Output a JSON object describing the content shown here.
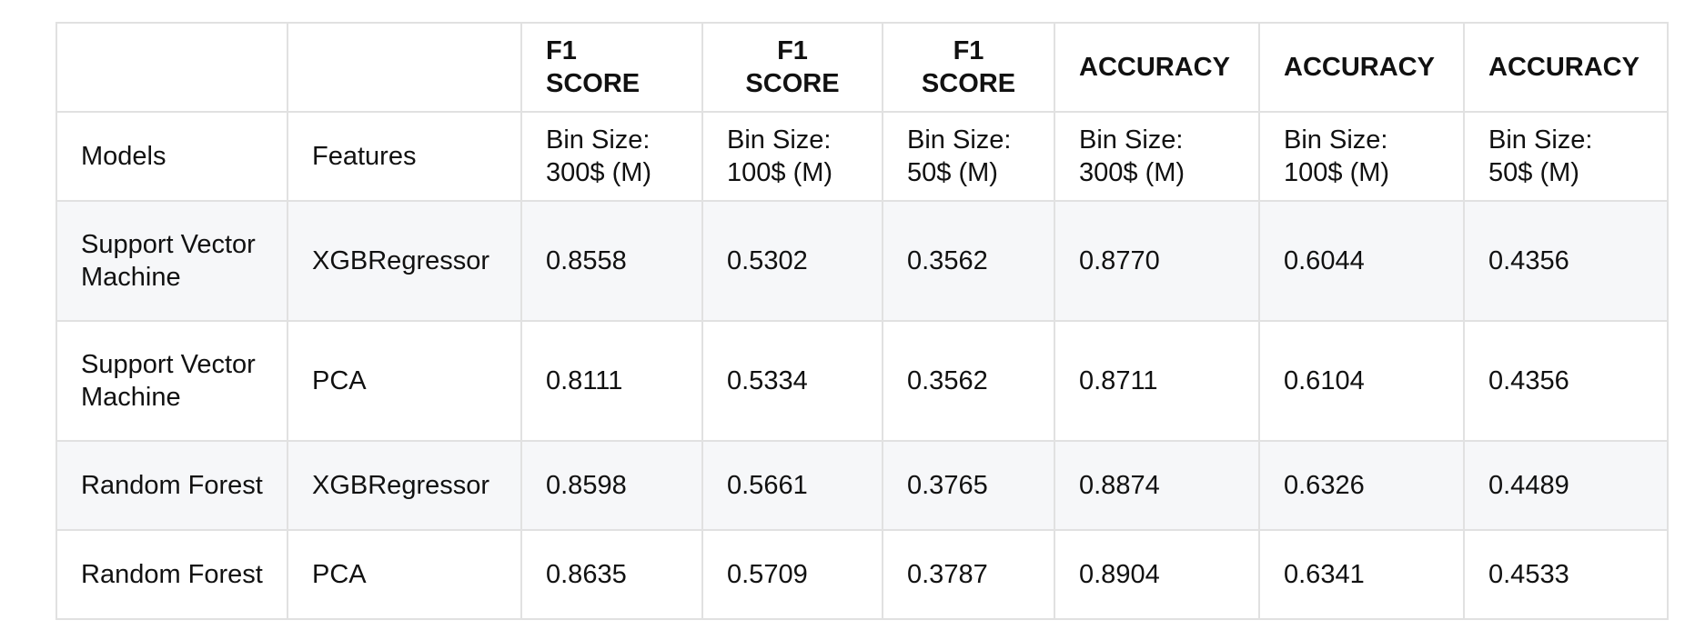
{
  "table": {
    "header": [
      "",
      "",
      "F1 SCORE",
      "F1 SCORE",
      "F1 SCORE",
      "ACCURACY",
      "ACCURACY",
      "ACCURACY"
    ],
    "subheader": [
      "Models",
      "Features",
      "Bin Size: 300$ (M)",
      "Bin Size: 100$ (M)",
      "Bin Size: 50$ (M)",
      "Bin Size: 300$ (M)",
      "Bin Size: 100$ (M)",
      "Bin Size: 50$ (M)"
    ],
    "rows": [
      [
        "Support Vector Machine",
        "XGBRegressor",
        "0.8558",
        "0.5302",
        "0.3562",
        "0.8770",
        "0.6044",
        "0.4356"
      ],
      [
        "Support Vector Machine",
        "PCA",
        "0.8111",
        "0.5334",
        "0.3562",
        "0.8711",
        "0.6104",
        "0.4356"
      ],
      [
        "Random Forest",
        "XGBRegressor",
        "0.8598",
        "0.5661",
        "0.3765",
        "0.8874",
        "0.6326",
        "0.4489"
      ],
      [
        "Random Forest",
        "PCA",
        "0.8635",
        "0.5709",
        "0.3787",
        "0.8904",
        "0.6341",
        "0.4533"
      ]
    ]
  }
}
